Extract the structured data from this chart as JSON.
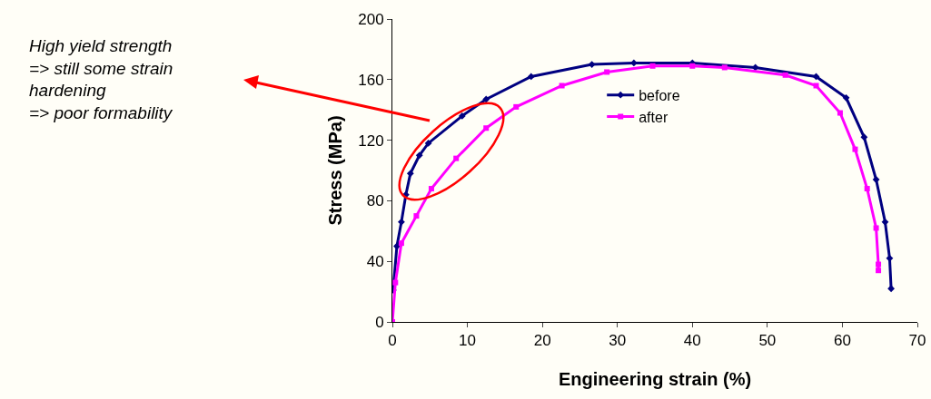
{
  "chart_data": {
    "type": "line",
    "xlabel": "Engineering strain (%)",
    "ylabel": "Stress (MPa)",
    "xlim": [
      0,
      70
    ],
    "xticks": [
      0,
      10,
      20,
      30,
      40,
      50,
      60,
      70
    ],
    "ylim": [
      0,
      200
    ],
    "yticks": [
      0,
      40,
      80,
      120,
      160,
      200
    ],
    "grid": false,
    "legend": "top",
    "annotations": [
      "High yield strength\n=> still some strain\nhardening\n=> poor formability"
    ],
    "series": [
      {
        "name": "before",
        "color": "#000080",
        "marker": "diamond",
        "x": [
          0.1,
          0.6,
          1.2,
          1.8,
          2.4,
          3.6,
          4.8,
          9.3,
          12.5,
          18.5,
          26.6,
          32.2,
          40,
          48.4,
          56.5,
          60.5,
          62.9,
          64.5,
          65.7,
          66.3,
          66.5
        ],
        "values": [
          21,
          50,
          66,
          84,
          98,
          110,
          118,
          136,
          147,
          162,
          170,
          171,
          171,
          168,
          162,
          148,
          122,
          94,
          66,
          42,
          22
        ]
      },
      {
        "name": "after",
        "color": "#ff00ff",
        "marker": "square",
        "x": [
          0,
          0.4,
          1.2,
          3.2,
          5.2,
          8.5,
          12.5,
          16.5,
          22.6,
          28.6,
          34.7,
          40,
          44.3,
          52.4,
          56.5,
          59.7,
          61.7,
          63.3,
          64.5,
          64.8,
          64.8
        ],
        "values": [
          0,
          26,
          52,
          70,
          88,
          108,
          128,
          142,
          156,
          165,
          169,
          169,
          168,
          163,
          156,
          138,
          114,
          88,
          62,
          38,
          34
        ]
      }
    ]
  }
}
